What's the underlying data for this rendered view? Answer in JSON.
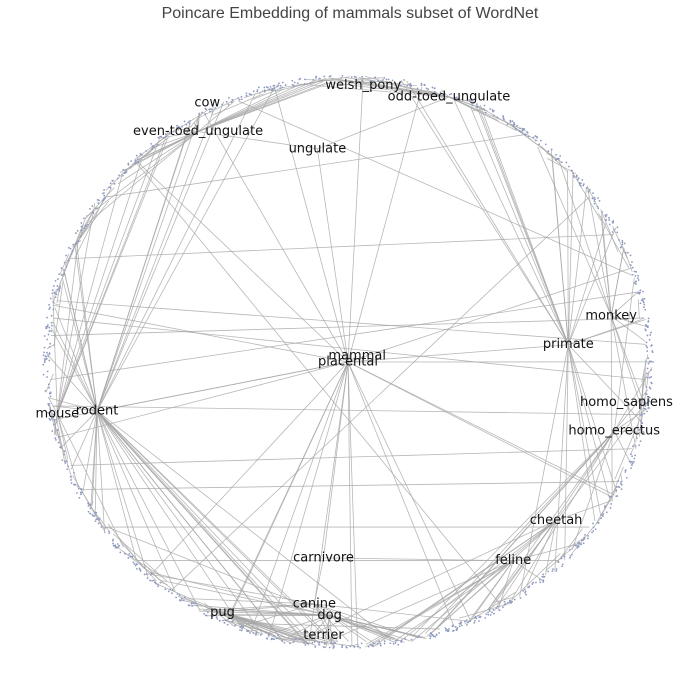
{
  "title": "Poincare Embedding of mammals subset of WordNet",
  "colors": {
    "edge": "#a6a6a6",
    "node": "#8e9ac0",
    "text": "#111111",
    "title": "#444444"
  },
  "chart_data": {
    "type": "scatter",
    "title": "Poincare Embedding of mammals subset of WordNet",
    "xlim": [
      -1,
      1
    ],
    "ylim": [
      -1,
      1
    ],
    "grid": false,
    "labeled_nodes": [
      {
        "name": "welsh_pony",
        "x": 0.05,
        "y": 0.96
      },
      {
        "name": "odd-toed_ungulate",
        "x": 0.33,
        "y": 0.92
      },
      {
        "name": "cow",
        "x": -0.46,
        "y": 0.9
      },
      {
        "name": "even-toed_ungulate",
        "x": -0.49,
        "y": 0.8
      },
      {
        "name": "ungulate",
        "x": -0.1,
        "y": 0.74
      },
      {
        "name": "monkey",
        "x": 0.86,
        "y": 0.16
      },
      {
        "name": "primate",
        "x": 0.72,
        "y": 0.06
      },
      {
        "name": "mammal",
        "x": 0.03,
        "y": 0.02
      },
      {
        "name": "placental",
        "x": 0.0,
        "y": 0.0
      },
      {
        "name": "homo_sapiens",
        "x": 0.91,
        "y": -0.14
      },
      {
        "name": "mouse",
        "x": -0.95,
        "y": -0.18
      },
      {
        "name": "rodent",
        "x": -0.82,
        "y": -0.17
      },
      {
        "name": "homo_erectus",
        "x": 0.87,
        "y": -0.24
      },
      {
        "name": "cheetah",
        "x": 0.68,
        "y": -0.55
      },
      {
        "name": "feline",
        "x": 0.54,
        "y": -0.69
      },
      {
        "name": "carnivore",
        "x": -0.08,
        "y": -0.68
      },
      {
        "name": "canine",
        "x": -0.11,
        "y": -0.84
      },
      {
        "name": "dog",
        "x": -0.06,
        "y": -0.88
      },
      {
        "name": "pug",
        "x": -0.41,
        "y": -0.87
      },
      {
        "name": "terrier",
        "x": -0.08,
        "y": -0.95
      }
    ]
  }
}
